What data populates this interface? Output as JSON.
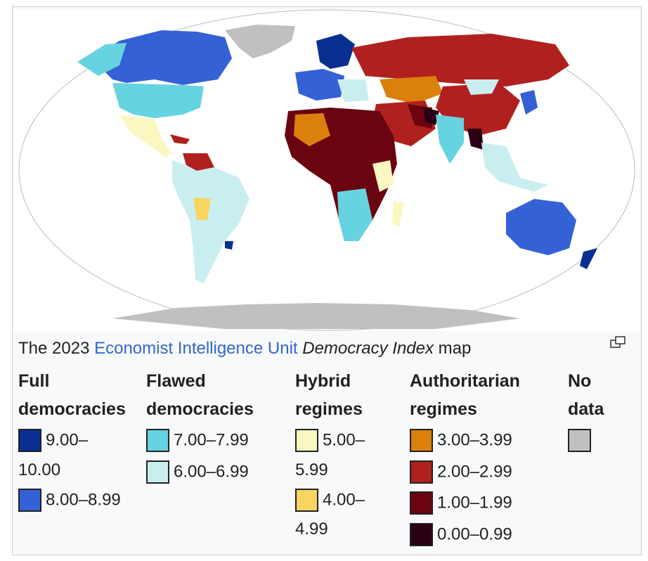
{
  "caption": {
    "prefix": "The 2023 ",
    "link": "Economist Intelligence Unit",
    "italic": "Democracy Index",
    "suffix": " map"
  },
  "map": {
    "ocean_color": "#ffffff",
    "land_nodata": "#c0c0c0"
  },
  "legend": [
    {
      "heading_lines": [
        "Full",
        "democracies"
      ],
      "items": [
        {
          "range_lines": [
            "9.00–",
            "10.00"
          ],
          "color": "#0a2f92"
        },
        {
          "range_lines": [
            "8.00–8.99"
          ],
          "color": "#3461d6"
        }
      ]
    },
    {
      "heading_lines": [
        "Flawed",
        "democracies"
      ],
      "items": [
        {
          "range_lines": [
            "7.00–7.99"
          ],
          "color": "#66d3e0"
        },
        {
          "range_lines": [
            "6.00–6.99"
          ],
          "color": "#c9eef0"
        }
      ]
    },
    {
      "heading_lines": [
        "Hybrid",
        "regimes"
      ],
      "items": [
        {
          "range_lines": [
            "5.00–",
            "5.99"
          ],
          "color": "#fbf7c0"
        },
        {
          "range_lines": [
            "4.00–",
            "4.99"
          ],
          "color": "#f9d460"
        }
      ]
    },
    {
      "heading_lines": [
        "Authoritarian",
        "regimes"
      ],
      "items": [
        {
          "range_lines": [
            "3.00–3.99"
          ],
          "color": "#db800c"
        },
        {
          "range_lines": [
            "2.00–2.99"
          ],
          "color": "#b0201f"
        },
        {
          "range_lines": [
            "1.00–1.99"
          ],
          "color": "#6b0411"
        },
        {
          "range_lines": [
            "0.00–0.99"
          ],
          "color": "#2b0015"
        }
      ]
    },
    {
      "heading_lines": [
        "No",
        "data"
      ],
      "items": [
        {
          "range_lines": [],
          "color": "#c0c0c0"
        }
      ]
    }
  ]
}
